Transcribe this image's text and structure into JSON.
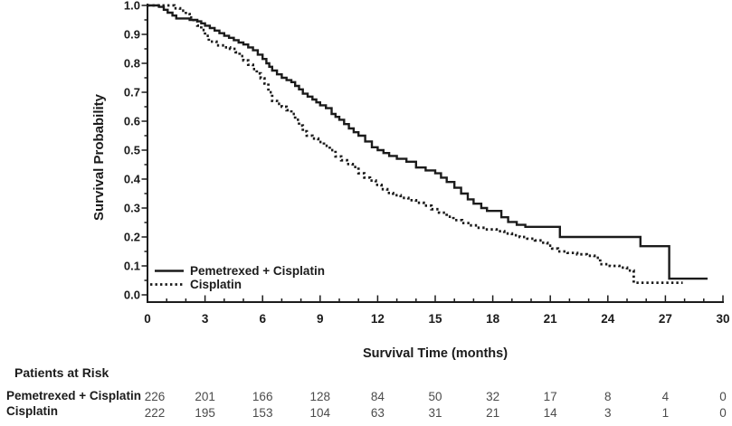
{
  "figure": {
    "background": "#ffffff",
    "ink_color": "#1b1b1b"
  },
  "chart_data": {
    "type": "line",
    "subtype": "kaplan-meier-step",
    "title": "",
    "xlabel": "Survival Time (months)",
    "ylabel": "Survival Probability",
    "xlim": [
      0,
      30
    ],
    "ylim": [
      0.0,
      1.0
    ],
    "x_ticks": [
      0,
      3,
      6,
      9,
      12,
      15,
      18,
      21,
      24,
      27,
      30
    ],
    "x_minor_interval": 1,
    "y_ticks": [
      "1.0",
      "0.9",
      "0.8",
      "0.7",
      "0.6",
      "0.5",
      "0.4",
      "0.3",
      "0.2",
      "0.1",
      "0.0"
    ],
    "y_minor_interval": 0.05,
    "grid": false,
    "legend_position": "lower-left",
    "series": [
      {
        "name": "Pemetrexed + Cisplatin",
        "line": "solid",
        "color": "#1b1b1b",
        "end_month": 29.2,
        "points": [
          [
            0,
            1.0
          ],
          [
            0.6,
            0.995
          ],
          [
            0.85,
            0.985
          ],
          [
            1.05,
            0.975
          ],
          [
            1.3,
            0.965
          ],
          [
            1.5,
            0.955
          ],
          [
            2.2,
            0.95
          ],
          [
            2.6,
            0.945
          ],
          [
            2.8,
            0.938
          ],
          [
            3.0,
            0.93
          ],
          [
            3.25,
            0.922
          ],
          [
            3.5,
            0.913
          ],
          [
            3.75,
            0.904
          ],
          [
            4.0,
            0.895
          ],
          [
            4.25,
            0.888
          ],
          [
            4.5,
            0.88
          ],
          [
            4.75,
            0.872
          ],
          [
            5.0,
            0.865
          ],
          [
            5.25,
            0.855
          ],
          [
            5.5,
            0.845
          ],
          [
            5.75,
            0.83
          ],
          [
            6.0,
            0.815
          ],
          [
            6.2,
            0.8
          ],
          [
            6.35,
            0.788
          ],
          [
            6.5,
            0.775
          ],
          [
            6.75,
            0.762
          ],
          [
            7.0,
            0.75
          ],
          [
            7.25,
            0.742
          ],
          [
            7.5,
            0.735
          ],
          [
            7.7,
            0.722
          ],
          [
            7.9,
            0.71
          ],
          [
            8.1,
            0.695
          ],
          [
            8.35,
            0.685
          ],
          [
            8.6,
            0.675
          ],
          [
            8.8,
            0.665
          ],
          [
            9.0,
            0.655
          ],
          [
            9.3,
            0.645
          ],
          [
            9.6,
            0.625
          ],
          [
            9.8,
            0.615
          ],
          [
            10.0,
            0.605
          ],
          [
            10.25,
            0.59
          ],
          [
            10.5,
            0.575
          ],
          [
            10.75,
            0.562
          ],
          [
            11.0,
            0.55
          ],
          [
            11.35,
            0.53
          ],
          [
            11.7,
            0.51
          ],
          [
            12.0,
            0.5
          ],
          [
            12.3,
            0.49
          ],
          [
            12.6,
            0.48
          ],
          [
            13.0,
            0.47
          ],
          [
            13.5,
            0.46
          ],
          [
            14.0,
            0.44
          ],
          [
            14.5,
            0.43
          ],
          [
            15.0,
            0.42
          ],
          [
            15.3,
            0.405
          ],
          [
            15.6,
            0.39
          ],
          [
            16.0,
            0.37
          ],
          [
            16.35,
            0.35
          ],
          [
            16.7,
            0.33
          ],
          [
            17.0,
            0.315
          ],
          [
            17.4,
            0.3
          ],
          [
            17.7,
            0.29
          ],
          [
            18.45,
            0.268
          ],
          [
            18.8,
            0.252
          ],
          [
            19.25,
            0.242
          ],
          [
            19.7,
            0.235
          ],
          [
            21.5,
            0.2
          ],
          [
            25.7,
            0.168
          ],
          [
            27.2,
            0.056
          ]
        ]
      },
      {
        "name": "Cisplatin",
        "line": "dotted",
        "color": "#1b1b1b",
        "end_month": 27.9,
        "points": [
          [
            0,
            1.0
          ],
          [
            1.4,
            0.99
          ],
          [
            1.7,
            0.982
          ],
          [
            2.0,
            0.97
          ],
          [
            2.2,
            0.958
          ],
          [
            2.4,
            0.945
          ],
          [
            2.6,
            0.93
          ],
          [
            2.8,
            0.915
          ],
          [
            3.0,
            0.895
          ],
          [
            3.2,
            0.875
          ],
          [
            3.6,
            0.862
          ],
          [
            4.0,
            0.855
          ],
          [
            4.3,
            0.85
          ],
          [
            4.6,
            0.838
          ],
          [
            4.8,
            0.825
          ],
          [
            5.0,
            0.81
          ],
          [
            5.25,
            0.795
          ],
          [
            5.5,
            0.78
          ],
          [
            5.7,
            0.765
          ],
          [
            5.9,
            0.748
          ],
          [
            6.1,
            0.73
          ],
          [
            6.3,
            0.7
          ],
          [
            6.5,
            0.67
          ],
          [
            6.75,
            0.66
          ],
          [
            7.0,
            0.65
          ],
          [
            7.25,
            0.638
          ],
          [
            7.5,
            0.625
          ],
          [
            7.7,
            0.605
          ],
          [
            7.9,
            0.585
          ],
          [
            8.1,
            0.565
          ],
          [
            8.3,
            0.55
          ],
          [
            8.6,
            0.54
          ],
          [
            8.9,
            0.528
          ],
          [
            9.2,
            0.515
          ],
          [
            9.5,
            0.5
          ],
          [
            9.8,
            0.478
          ],
          [
            10.1,
            0.465
          ],
          [
            10.4,
            0.452
          ],
          [
            10.7,
            0.442
          ],
          [
            11.0,
            0.42
          ],
          [
            11.3,
            0.405
          ],
          [
            11.6,
            0.395
          ],
          [
            11.9,
            0.38
          ],
          [
            12.2,
            0.365
          ],
          [
            12.5,
            0.352
          ],
          [
            12.8,
            0.344
          ],
          [
            13.2,
            0.335
          ],
          [
            13.6,
            0.327
          ],
          [
            14.0,
            0.318
          ],
          [
            14.4,
            0.308
          ],
          [
            14.8,
            0.296
          ],
          [
            15.2,
            0.284
          ],
          [
            15.6,
            0.27
          ],
          [
            15.95,
            0.258
          ],
          [
            16.4,
            0.248
          ],
          [
            16.8,
            0.24
          ],
          [
            17.2,
            0.232
          ],
          [
            17.6,
            0.226
          ],
          [
            18.2,
            0.22
          ],
          [
            18.6,
            0.212
          ],
          [
            19.0,
            0.206
          ],
          [
            19.4,
            0.2
          ],
          [
            19.8,
            0.194
          ],
          [
            20.2,
            0.188
          ],
          [
            20.55,
            0.18
          ],
          [
            20.85,
            0.17
          ],
          [
            21.1,
            0.16
          ],
          [
            21.4,
            0.15
          ],
          [
            21.9,
            0.145
          ],
          [
            22.4,
            0.14
          ],
          [
            22.9,
            0.135
          ],
          [
            23.3,
            0.128
          ],
          [
            23.6,
            0.106
          ],
          [
            24.1,
            0.1
          ],
          [
            24.6,
            0.094
          ],
          [
            25.0,
            0.084
          ],
          [
            25.35,
            0.042
          ]
        ]
      }
    ]
  },
  "risk_table": {
    "title": "Patients at Risk",
    "time_points": [
      0,
      3,
      6,
      9,
      12,
      15,
      18,
      21,
      24,
      27,
      30
    ],
    "rows": [
      {
        "label": "Pemetrexed + Cisplatin",
        "values": [
          226,
          201,
          166,
          128,
          84,
          50,
          32,
          17,
          8,
          4,
          0
        ]
      },
      {
        "label": "Cisplatin",
        "values": [
          222,
          195,
          153,
          104,
          63,
          31,
          21,
          14,
          3,
          1,
          0
        ]
      }
    ]
  }
}
